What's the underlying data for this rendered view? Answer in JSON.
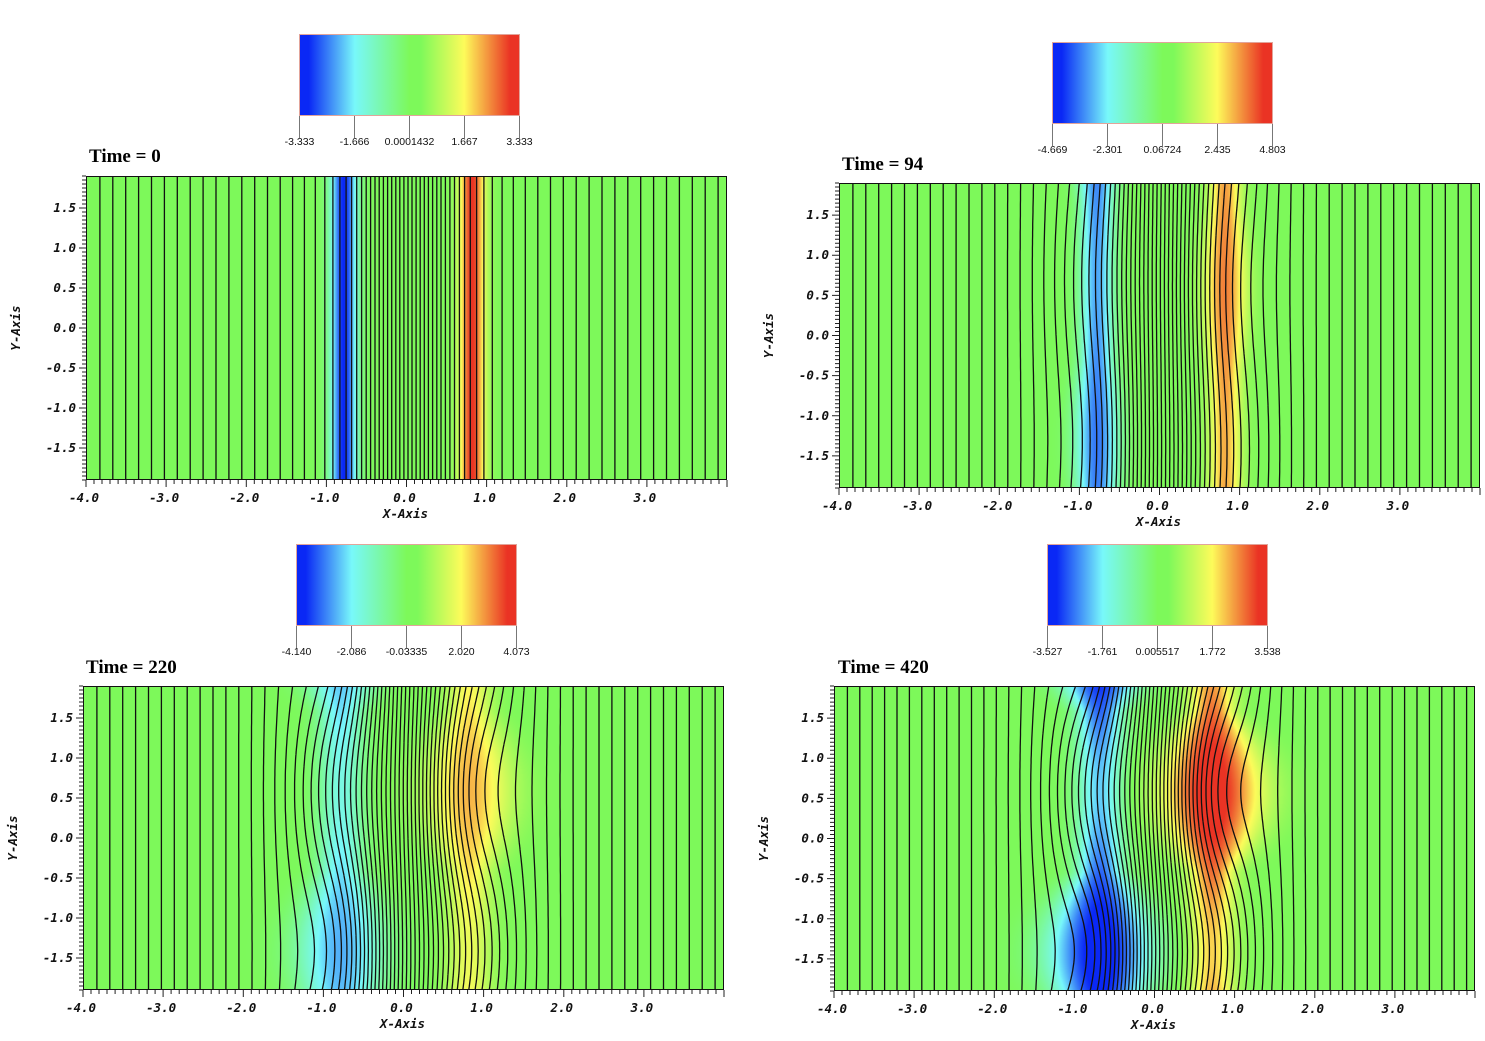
{
  "chart_data": [
    {
      "type": "heatmap",
      "title": "Time = 0",
      "time": 0,
      "xlabel": "X-Axis",
      "ylabel": "Y-Axis",
      "xlim": [
        -4.0,
        4.0
      ],
      "ylim": [
        -1.9,
        1.9
      ],
      "x_ticks": [
        "-4.0",
        "-3.0",
        "-2.0",
        "-1.0",
        "0.0",
        "1.0",
        "2.0",
        "3.0"
      ],
      "y_ticks": [
        "1.5",
        "1.0",
        "0.5",
        "0.0",
        "-0.5",
        "-1.0",
        "-1.5"
      ],
      "colorbar": {
        "min": -3.333,
        "max": 3.333,
        "tick_labels": [
          "-3.333",
          "-1.666",
          "0.0001432",
          "1.667",
          "3.333"
        ]
      },
      "colormap": [
        "#0a28f5",
        "#78f8fa",
        "#7df95a",
        "#fdfb5a",
        "#ea3324"
      ],
      "features": {
        "negative_sheet_x": -0.8,
        "positive_sheet_x": 0.8,
        "island_amplitude": 0.0,
        "o_point_y_negative": null,
        "o_point_y_positive": null,
        "x_point_y_negative": null,
        "x_point_y_positive": null,
        "peak_fraction": 1.0
      }
    },
    {
      "type": "heatmap",
      "title": "Time = 94",
      "time": 94,
      "xlabel": "X-Axis",
      "ylabel": "Y-Axis",
      "xlim": [
        -4.0,
        4.0
      ],
      "ylim": [
        -1.9,
        1.9
      ],
      "x_ticks": [
        "-4.0",
        "-3.0",
        "-2.0",
        "-1.0",
        "0.0",
        "1.0",
        "2.0",
        "3.0"
      ],
      "y_ticks": [
        "1.5",
        "1.0",
        "0.5",
        "0.0",
        "-0.5",
        "-1.0",
        "-1.5"
      ],
      "colorbar": {
        "min": -4.669,
        "max": 4.803,
        "tick_labels": [
          "-4.669",
          "-2.301",
          "0.06724",
          "2.435",
          "4.803"
        ]
      },
      "colormap": [
        "#0a28f5",
        "#78f8fa",
        "#7df95a",
        "#fdfb5a",
        "#ea3324"
      ],
      "features": {
        "negative_sheet_x": -0.8,
        "positive_sheet_x": 0.8,
        "island_amplitude": 0.35,
        "o_point_y_negative": -1.3,
        "o_point_y_positive": 0.6,
        "x_point_y_negative": 0.6,
        "x_point_y_positive": -1.3,
        "peak_fraction": 0.75
      }
    },
    {
      "type": "heatmap",
      "title": "Time = 220",
      "time": 220,
      "xlabel": "X-Axis",
      "ylabel": "Y-Axis",
      "xlim": [
        -4.0,
        4.0
      ],
      "ylim": [
        -1.9,
        1.9
      ],
      "x_ticks": [
        "-4.0",
        "-3.0",
        "-2.0",
        "-1.0",
        "0.0",
        "1.0",
        "2.0",
        "3.0"
      ],
      "y_ticks": [
        "1.5",
        "1.0",
        "0.5",
        "0.0",
        "-0.5",
        "-1.0",
        "-1.5"
      ],
      "colorbar": {
        "min": -4.14,
        "max": 4.073,
        "tick_labels": [
          "-4.140",
          "-2.086",
          "-0.03335",
          "2.020",
          "4.073"
        ]
      },
      "colormap": [
        "#0a28f5",
        "#78f8fa",
        "#7df95a",
        "#fdfb5a",
        "#ea3324"
      ],
      "features": {
        "negative_sheet_x": -0.8,
        "positive_sheet_x": 0.8,
        "island_amplitude": 1.0,
        "o_point_y_negative": -1.4,
        "o_point_y_positive": 0.6,
        "x_point_y_negative": 0.6,
        "x_point_y_positive": -1.4,
        "peak_fraction": 0.55
      }
    },
    {
      "type": "heatmap",
      "title": "Time = 420",
      "time": 420,
      "xlabel": "X-Axis",
      "ylabel": "Y-Axis",
      "xlim": [
        -4.0,
        4.0
      ],
      "ylim": [
        -1.9,
        1.9
      ],
      "x_ticks": [
        "-4.0",
        "-3.0",
        "-2.0",
        "-1.0",
        "0.0",
        "1.0",
        "2.0",
        "3.0"
      ],
      "y_ticks": [
        "1.5",
        "1.0",
        "0.5",
        "0.0",
        "-0.5",
        "-1.0",
        "-1.5"
      ],
      "colorbar": {
        "min": -3.527,
        "max": 3.538,
        "tick_labels": [
          "-3.527",
          "-1.761",
          "0.005517",
          "1.772",
          "3.538"
        ]
      },
      "colormap": [
        "#0a28f5",
        "#78f8fa",
        "#7df95a",
        "#fdfb5a",
        "#ea3324"
      ],
      "features": {
        "negative_sheet_x": -0.7,
        "positive_sheet_x": 0.7,
        "island_amplitude": 1.3,
        "o_point_y_negative": -1.4,
        "o_point_y_positive": 0.6,
        "x_point_y_negative": 0.6,
        "x_point_y_positive": -1.4,
        "peak_fraction": 0.85
      }
    }
  ]
}
